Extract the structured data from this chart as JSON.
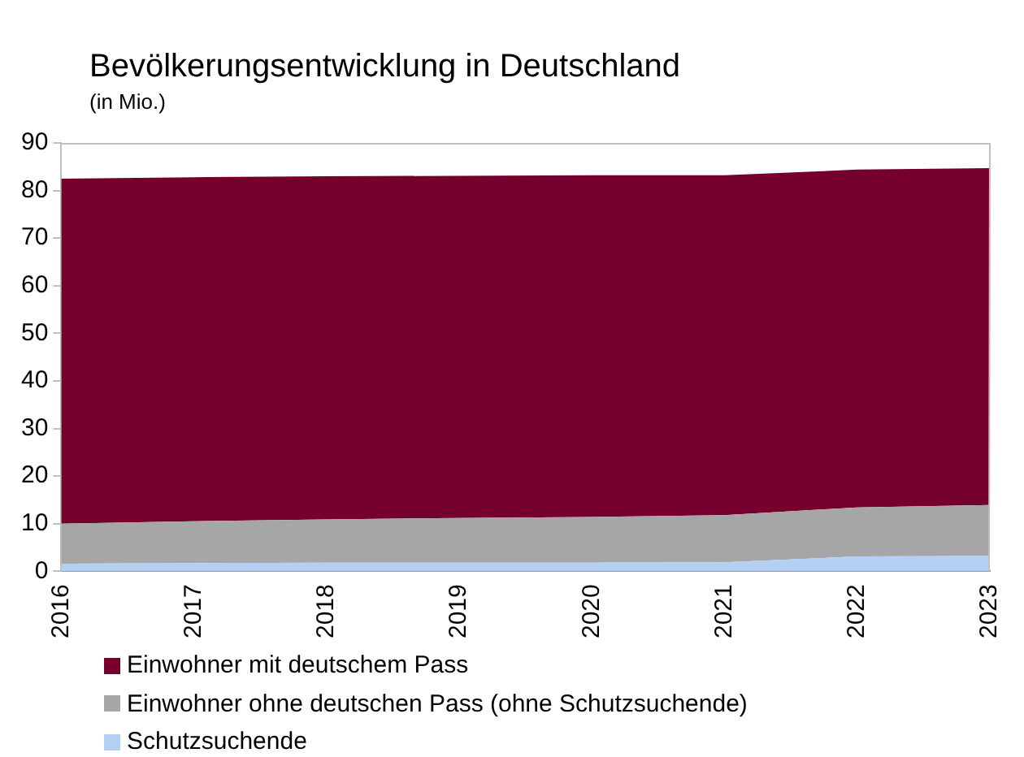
{
  "chart_data": {
    "type": "area",
    "title": "Bevölkerungsentwicklung in Deutschland",
    "subtitle": "(in Mio.)",
    "stacked": true,
    "categories": [
      "2016",
      "2017",
      "2018",
      "2019",
      "2020",
      "2021",
      "2022",
      "2023"
    ],
    "series": [
      {
        "name": "Schutzsuchende",
        "color": "#b4d0f5",
        "values": [
          1.6,
          1.7,
          1.8,
          1.8,
          1.8,
          1.9,
          3.1,
          3.2
        ]
      },
      {
        "name": "Einwohner ohne deutschen Pass (ohne Schutzsuchende)",
        "color": "#a6a6a6",
        "values": [
          8.4,
          8.8,
          9.1,
          9.4,
          9.6,
          9.9,
          10.3,
          10.7
        ]
      },
      {
        "name": "Einwohner mit deutschem Pass",
        "color": "#76002d",
        "values": [
          72.5,
          72.3,
          72.1,
          71.9,
          71.8,
          71.4,
          71.0,
          70.8
        ]
      }
    ],
    "ylim": [
      0,
      90
    ],
    "yticks": [
      0,
      10,
      20,
      30,
      40,
      50,
      60,
      70,
      80,
      90
    ],
    "grid": false,
    "legend": "bottom left"
  }
}
